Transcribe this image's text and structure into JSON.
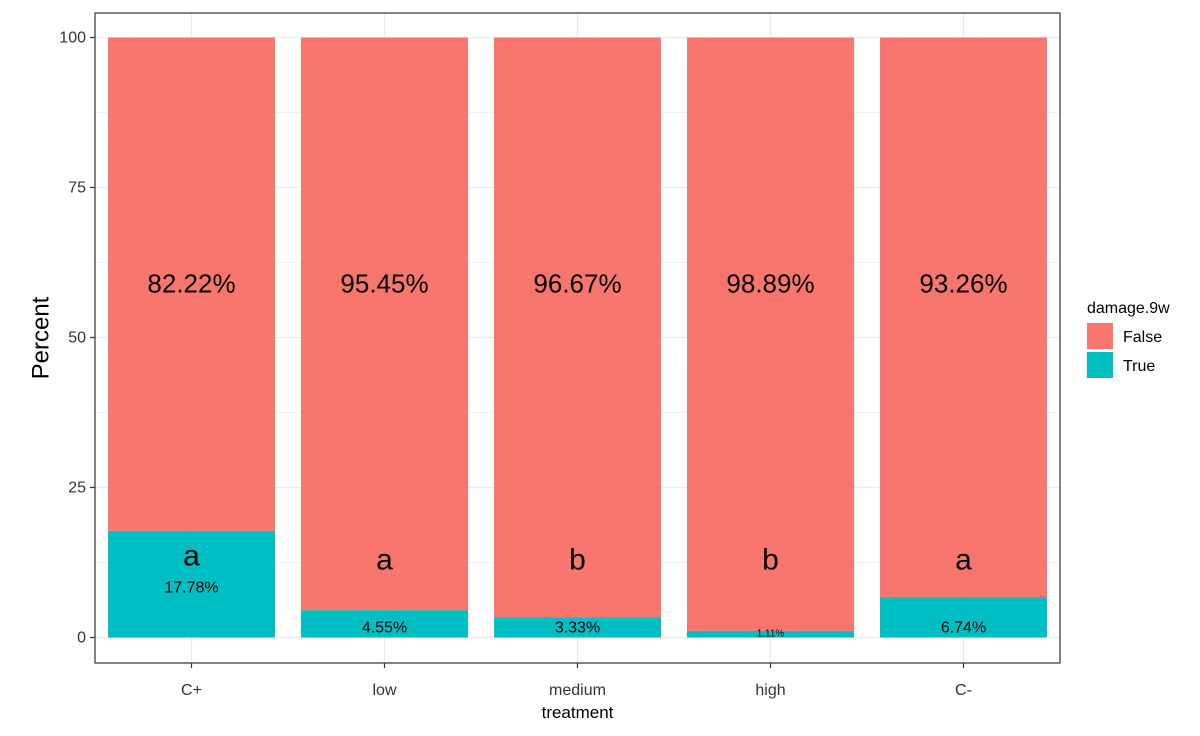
{
  "chart_data": {
    "type": "bar",
    "stacked": true,
    "xlabel": "treatment",
    "ylabel": "Percent",
    "ylim": [
      0,
      100
    ],
    "yticks": [
      0,
      25,
      50,
      75,
      100
    ],
    "grid": true,
    "legend_position": "right",
    "legend_title": "damage.9w",
    "categories": [
      "C+",
      "low",
      "medium",
      "high",
      "C-"
    ],
    "series": [
      {
        "name": "False",
        "color": "#F8766D",
        "values": [
          82.22,
          95.45,
          96.67,
          98.89,
          93.26
        ],
        "labels": [
          "82.22%",
          "95.45%",
          "96.67%",
          "98.89%",
          "93.26%"
        ]
      },
      {
        "name": "True",
        "color": "#00BFC4",
        "values": [
          17.78,
          4.55,
          3.33,
          1.11,
          6.74
        ],
        "labels": [
          "17.78%",
          "4.55%",
          "3.33%",
          "1.11%",
          "6.74%"
        ]
      }
    ],
    "group_letters": [
      "a",
      "a",
      "b",
      "b",
      "a"
    ]
  }
}
